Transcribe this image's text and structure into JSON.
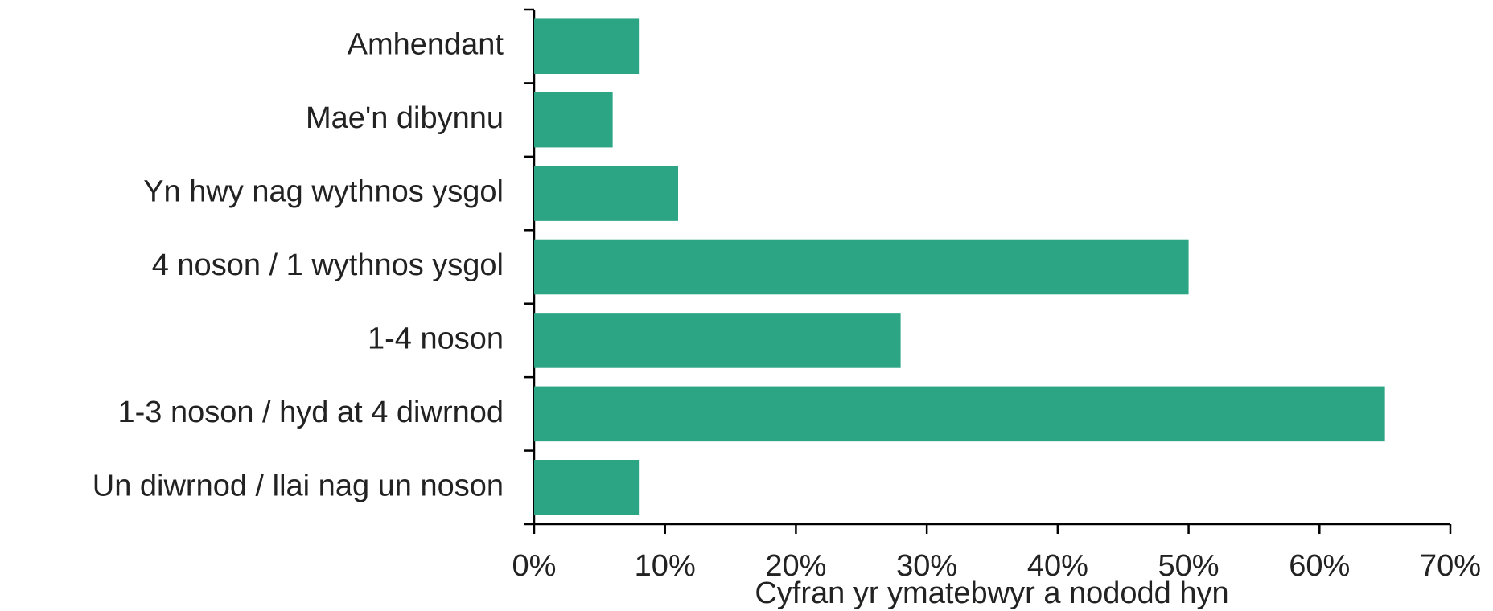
{
  "chart_data": {
    "type": "barh",
    "categories": [
      "Amhendant",
      "Mae'n dibynnu",
      "Yn hwy nag wythnos ysgol",
      "4 noson / 1 wythnos ysgol",
      "1-4 noson",
      "1-3 noson / hyd at 4 diwrnod",
      "Un diwrnod / llai nag un noson"
    ],
    "values": [
      8,
      6,
      11,
      50,
      28,
      65,
      8
    ],
    "color": "#2ca585",
    "xlabel": "Cyfran yr ymatebwyr a nododd hyn",
    "xlim": [
      0,
      70
    ],
    "xticks": [
      {
        "value": 0,
        "label": "0%"
      },
      {
        "value": 10,
        "label": "10%"
      },
      {
        "value": 20,
        "label": "20%"
      },
      {
        "value": 30,
        "label": "30%"
      },
      {
        "value": 40,
        "label": "40%"
      },
      {
        "value": 50,
        "label": "50%"
      },
      {
        "value": 60,
        "label": "60%"
      },
      {
        "value": 70,
        "label": "70%"
      }
    ],
    "grid": false
  }
}
